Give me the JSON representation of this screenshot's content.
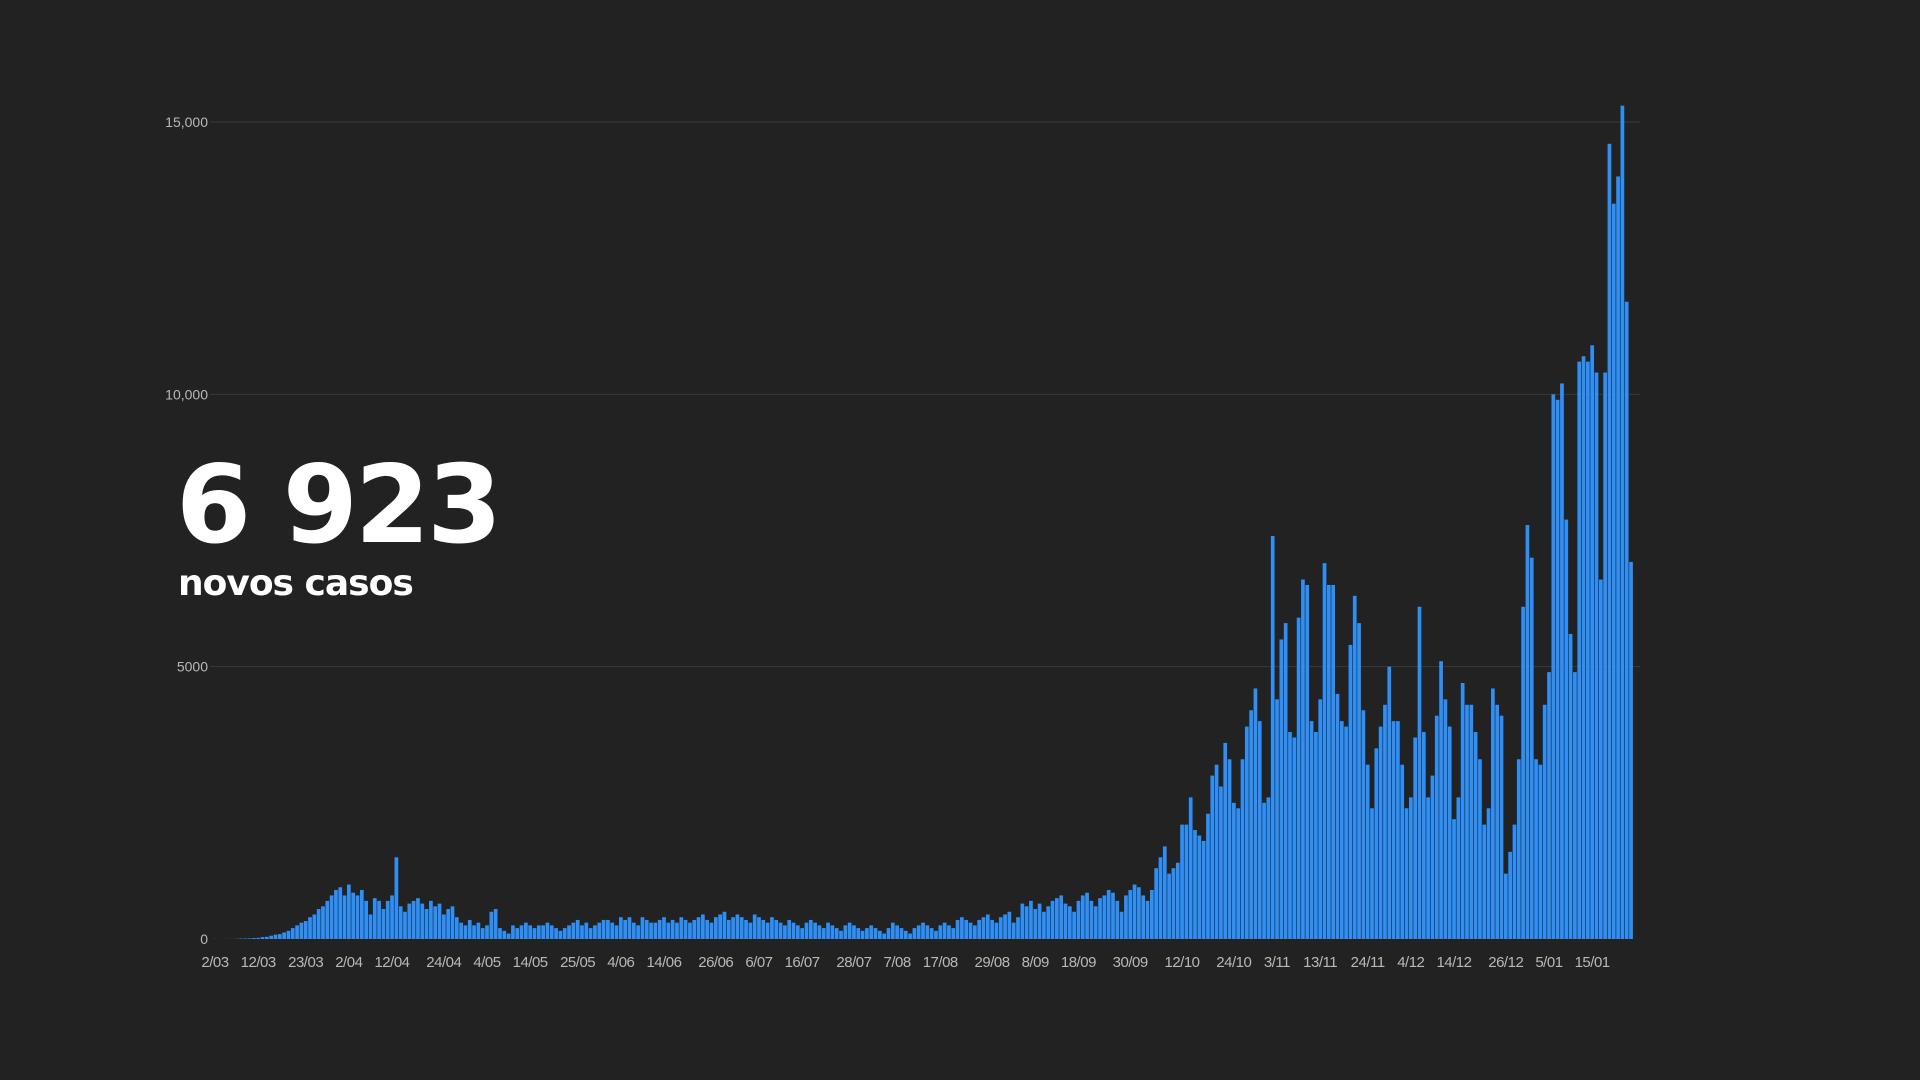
{
  "headline": {
    "value": "6 923",
    "label": "novos casos"
  },
  "colors": {
    "background": "#222222",
    "bar": "#2f8ff5",
    "grid": "#3a3a3a",
    "tick_text": "#b8b8b8",
    "headline": "#ffffff"
  },
  "chart_data": {
    "type": "bar",
    "title": "",
    "xlabel": "",
    "ylabel": "",
    "ylim": [
      0,
      15000
    ],
    "grid": true,
    "y_ticks": [
      {
        "value": 0,
        "label": "0"
      },
      {
        "value": 5000,
        "label": "5000"
      },
      {
        "value": 10000,
        "label": "10,000"
      },
      {
        "value": 15000,
        "label": "15,000"
      }
    ],
    "x_tick_labels": [
      "2/03",
      "12/03",
      "23/03",
      "2/04",
      "12/04",
      "24/04",
      "4/05",
      "14/05",
      "25/05",
      "4/06",
      "14/06",
      "26/06",
      "6/07",
      "16/07",
      "28/07",
      "7/08",
      "17/08",
      "29/08",
      "8/09",
      "18/09",
      "30/09",
      "12/10",
      "24/10",
      "3/11",
      "13/11",
      "24/11",
      "4/12",
      "14/12",
      "26/12",
      "5/01",
      "15/01"
    ],
    "values": [
      2,
      0,
      1,
      2,
      1,
      4,
      8,
      9,
      12,
      18,
      20,
      35,
      40,
      60,
      80,
      90,
      120,
      150,
      200,
      250,
      300,
      330,
      400,
      450,
      550,
      600,
      700,
      800,
      900,
      950,
      800,
      1000,
      850,
      800,
      900,
      700,
      450,
      750,
      700,
      550,
      700,
      800,
      1500,
      600,
      500,
      650,
      700,
      750,
      650,
      550,
      700,
      600,
      650,
      450,
      550,
      600,
      400,
      300,
      250,
      350,
      250,
      300,
      200,
      250,
      500,
      550,
      200,
      150,
      100,
      250,
      200,
      250,
      300,
      250,
      200,
      250,
      250,
      300,
      250,
      200,
      150,
      200,
      250,
      300,
      350,
      250,
      300,
      200,
      250,
      300,
      350,
      350,
      300,
      250,
      400,
      350,
      400,
      300,
      250,
      400,
      350,
      300,
      300,
      350,
      400,
      300,
      350,
      300,
      400,
      350,
      300,
      350,
      400,
      450,
      350,
      300,
      400,
      450,
      500,
      350,
      400,
      450,
      400,
      350,
      300,
      450,
      400,
      350,
      300,
      400,
      350,
      300,
      250,
      350,
      300,
      250,
      200,
      300,
      350,
      300,
      250,
      200,
      300,
      250,
      200,
      150,
      250,
      300,
      250,
      200,
      150,
      200,
      250,
      200,
      150,
      100,
      200,
      300,
      250,
      200,
      150,
      100,
      200,
      250,
      300,
      250,
      200,
      150,
      250,
      300,
      250,
      200,
      350,
      400,
      350,
      300,
      250,
      350,
      400,
      450,
      350,
      300,
      400,
      450,
      500,
      300,
      400,
      650,
      600,
      700,
      550,
      650,
      500,
      600,
      700,
      750,
      800,
      650,
      600,
      500,
      700,
      800,
      850,
      700,
      600,
      750,
      800,
      900,
      850,
      700,
      500,
      800,
      900,
      1000,
      950,
      800,
      700,
      900,
      1300,
      1500,
      1700,
      1200,
      1300,
      1400,
      2100,
      2100,
      2600,
      2000,
      1900,
      1800,
      2300,
      3000,
      3200,
      2800,
      3600,
      3300,
      2500,
      2400,
      3300,
      3900,
      4200,
      4600,
      4000,
      2500,
      2600,
      7400,
      4400,
      5500,
      5800,
      3800,
      3700,
      5900,
      6600,
      6500,
      4000,
      3800,
      4400,
      6900,
      6500,
      6500,
      4500,
      4000,
      3900,
      5400,
      6300,
      5800,
      4200,
      3200,
      2400,
      3500,
      3900,
      4300,
      5000,
      4000,
      4000,
      3200,
      2400,
      2600,
      3700,
      6100,
      3800,
      2600,
      3000,
      4100,
      5100,
      4400,
      3900,
      2200,
      2600,
      4700,
      4300,
      4300,
      3800,
      3300,
      2100,
      2400,
      4600,
      4300,
      4100,
      1200,
      1600,
      2100,
      3300,
      6100,
      7600,
      7000,
      3300,
      3200,
      4300,
      4900,
      10000,
      9900,
      10200,
      7700,
      5600,
      4900,
      10600,
      10700,
      10600,
      10900,
      10400,
      6600,
      10400,
      14600,
      13500,
      14000,
      15300,
      11700,
      6923
    ]
  }
}
